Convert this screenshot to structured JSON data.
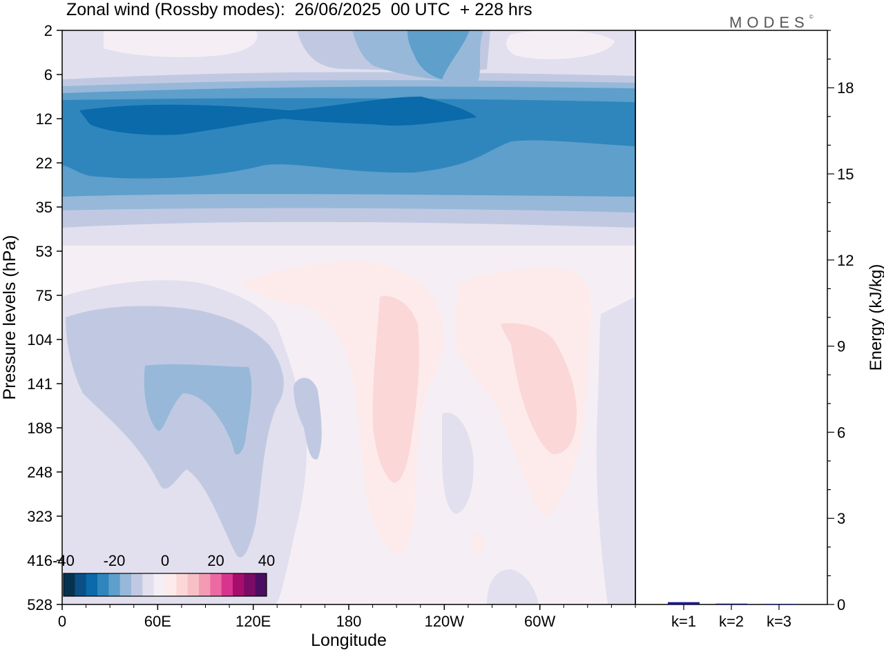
{
  "title": "Zonal wind (Rossby modes):  26/06/2025  00 UTC  + 228 hrs",
  "logo": "MODES",
  "logo_mark": "©",
  "colors": {
    "contours": [
      "#07324f",
      "#0b4f86",
      "#0a6aaa",
      "#2f86bd",
      "#5e9fcb",
      "#97b8d9",
      "#c1c9e2",
      "#e2e0ee",
      "#f5eff5",
      "#fdebeb",
      "#fbd7d8",
      "#f7c0c6",
      "#f39bb4",
      "#ec6aa2",
      "#d8348f",
      "#a70d6d",
      "#7a0b67",
      "#4b0d62"
    ]
  },
  "chart_data": [
    {
      "type": "heatmap",
      "title": "Zonal wind (Rossby modes):  26/06/2025  00 UTC  + 228 hrs",
      "xlabel": "Longitude",
      "ylabel": "Pressure levels (hPa)",
      "xticks": [
        "0",
        "60E",
        "120E",
        "180",
        "120W",
        "60W"
      ],
      "yticks": [
        "2",
        "6",
        "12",
        "22",
        "35",
        "53",
        "75",
        "104",
        "141",
        "188",
        "248",
        "323",
        "416",
        "528"
      ],
      "colorbar": {
        "ticks": [
          "-40",
          "-20",
          "0",
          "20",
          "40"
        ],
        "range": [
          -40,
          40
        ]
      },
      "description_levels_hpa": [
        2,
        6,
        12,
        22,
        35,
        53,
        75,
        104,
        141,
        188,
        248,
        323,
        416,
        528
      ]
    },
    {
      "type": "bar",
      "ylabel": "Energy (kJ/kg)",
      "ylim": [
        0,
        20
      ],
      "yticks": [
        "0",
        "3",
        "6",
        "9",
        "12",
        "15",
        "18"
      ],
      "categories": [
        "k=1",
        "k=2",
        "k=3"
      ],
      "values": [
        0.08,
        0.03,
        0.02
      ],
      "bar_color": "#1a1a8c"
    }
  ]
}
